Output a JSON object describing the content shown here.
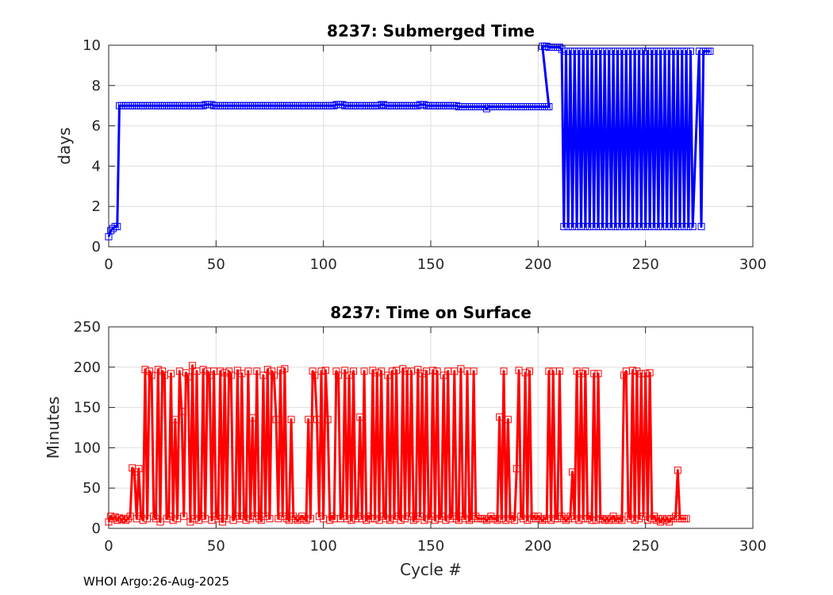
{
  "footer": "WHOI Argo:26-Aug-2025",
  "colors": {
    "submerged": "#0000ff",
    "surface": "#ff0000",
    "grid": "#dedede",
    "axis": "#262626"
  },
  "chart_data": [
    {
      "type": "line",
      "title": "8237: Submerged Time",
      "xlabel": "",
      "ylabel": "days",
      "xlim": [
        0,
        300
      ],
      "ylim": [
        0,
        10
      ],
      "xticks": [
        0,
        50,
        100,
        150,
        200,
        250,
        300
      ],
      "yticks": [
        0,
        2,
        4,
        6,
        8,
        10
      ],
      "grid": true,
      "marker": "square",
      "series": [
        {
          "name": "Submerged Time",
          "color": "#0000ff",
          "segments": [
            {
              "x_start": 0,
              "x_end": 4,
              "values": [
                0.5,
                0.8,
                0.9,
                1.0,
                1.0
              ]
            },
            {
              "x_start": 5,
              "x_end": 201,
              "values": [
                7.0,
                7.0,
                7.0,
                7.0,
                7.0,
                7.0,
                7.0,
                7.0,
                7.0,
                7.0,
                7.0,
                7.0,
                7.0,
                7.0,
                7.0,
                7.0,
                7.0,
                7.0,
                7.0,
                7.0,
                7.0,
                7.0,
                7.0,
                7.0,
                7.0,
                7.0,
                7.0,
                7.0,
                7.0,
                7.0,
                7.0,
                7.0,
                7.0,
                7.0,
                7.0,
                7.0,
                7.0,
                7.0,
                7.0,
                7.0,
                7.05,
                7.05,
                7.05,
                7.05,
                7.0,
                7.0,
                7.0,
                7.0,
                7.0,
                7.0,
                7.0,
                7.0,
                7.0,
                7.0,
                7.0,
                7.0,
                7.0,
                7.0,
                7.0,
                7.0,
                7.0,
                7.0,
                7.0,
                7.0,
                7.0,
                7.0,
                7.0,
                7.0,
                7.0,
                7.0,
                7.0,
                7.0,
                7.0,
                7.0,
                7.0,
                7.0,
                7.0,
                7.0,
                7.0,
                7.0,
                7.0,
                7.0,
                7.0,
                7.0,
                7.0,
                7.0,
                7.0,
                7.0,
                7.0,
                7.0,
                7.0,
                7.0,
                7.0,
                7.0,
                7.0,
                7.0,
                7.0,
                7.0,
                7.0,
                7.0,
                7.0,
                7.05,
                7.05,
                7.05,
                7.05,
                7.0,
                7.0,
                7.0,
                7.0,
                7.0,
                7.0,
                7.0,
                7.0,
                7.0,
                7.0,
                7.0,
                7.0,
                7.0,
                7.0,
                7.0,
                7.0,
                7.0,
                7.05,
                7.05,
                7.0,
                7.0,
                7.0,
                7.0,
                7.0,
                7.0,
                7.0,
                7.0,
                7.0,
                7.0,
                7.0,
                7.0,
                7.0,
                7.0,
                7.0,
                7.0,
                7.05,
                7.05,
                7.05,
                7.0,
                7.0,
                7.0,
                7.0,
                7.0,
                7.0,
                7.0,
                7.0,
                7.0,
                7.0,
                7.0,
                7.0,
                7.0,
                7.0,
                7.0,
                6.95,
                6.95,
                6.95,
                6.95,
                6.95,
                6.95,
                6.95,
                6.95,
                6.95,
                6.95,
                6.95,
                6.95,
                6.95,
                6.85,
                6.95,
                6.95,
                6.95,
                6.95,
                6.95,
                6.95,
                6.95,
                6.95,
                6.95,
                6.95,
                6.95,
                6.95,
                6.95,
                6.95,
                6.95,
                6.95,
                6.95,
                6.95,
                6.95,
                6.95,
                6.95,
                6.95,
                6.95,
                6.95,
                6.95,
                6.95,
                6.95,
                6.95,
                6.95
              ]
            },
            {
              "x_start": 202,
              "x_end": 211,
              "values": [
                9.95,
                9.95,
                9.95,
                9.9,
                9.9,
                9.9,
                9.9,
                9.9,
                9.9,
                9.8
              ]
            },
            {
              "x_start": 212,
              "x_end": 272,
              "alternating": [
                1.0,
                9.7
              ]
            },
            {
              "x_start": 275,
              "x_end": 280,
              "values": [
                9.7,
                1.0,
                9.7,
                9.7,
                9.7,
                9.7
              ]
            }
          ]
        }
      ]
    },
    {
      "type": "line",
      "title": "8237: Time on Surface",
      "xlabel": "Cycle #",
      "ylabel": "Minutes",
      "xlim": [
        0,
        300
      ],
      "ylim": [
        0,
        250
      ],
      "xticks": [
        0,
        50,
        100,
        150,
        200,
        250,
        300
      ],
      "yticks": [
        0,
        50,
        100,
        150,
        200,
        250
      ],
      "grid": true,
      "marker": "square",
      "series": [
        {
          "name": "Time on Surface",
          "color": "#ff0000",
          "x_start": 0,
          "values": [
            8,
            15,
            12,
            14,
            10,
            13,
            11,
            12,
            10,
            12,
            15,
            75,
            70,
            12,
            74,
            15,
            10,
            197,
            12,
            195,
            190,
            15,
            12,
            197,
            8,
            195,
            190,
            12,
            15,
            192,
            10,
            135,
            12,
            195,
            145,
            15,
            193,
            188,
            8,
            202,
            12,
            195,
            10,
            15,
            197,
            12,
            195,
            190,
            10,
            195,
            15,
            12,
            195,
            8,
            193,
            12,
            195,
            190,
            10,
            15,
            196,
            12,
            192,
            15,
            10,
            195,
            12,
            137,
            15,
            195,
            12,
            10,
            190,
            15,
            197,
            12,
            195,
            190,
            135,
            12,
            196,
            15,
            198,
            12,
            10,
            135,
            15,
            12,
            10,
            12,
            15,
            12,
            10,
            135,
            12,
            195,
            190,
            135,
            15,
            195,
            12,
            196,
            135,
            10,
            15,
            12,
            195,
            190,
            12,
            15,
            196,
            12,
            190,
            10,
            195,
            12,
            15,
            138,
            12,
            195,
            10,
            15,
            12,
            196,
            12,
            193,
            10,
            195,
            15,
            12,
            190,
            10,
            195,
            12,
            196,
            15,
            10,
            198,
            12,
            195,
            15,
            195,
            10,
            12,
            197,
            15,
            192,
            10,
            195,
            12,
            15,
            196,
            10,
            195,
            12,
            15,
            190,
            10,
            195,
            12,
            15,
            195,
            12,
            10,
            198,
            15,
            12,
            195,
            10,
            12,
            195,
            15,
            12,
            12,
            12,
            12,
            10,
            12,
            15,
            12,
            12,
            10,
            138,
            12,
            195,
            10,
            135,
            12,
            15,
            10,
            74,
            196,
            15,
            12,
            193,
            10,
            195,
            12,
            15,
            12,
            15,
            12,
            10,
            12,
            12,
            195,
            10,
            195,
            12,
            12,
            195,
            15,
            12,
            10,
            12,
            15,
            70,
            12,
            195,
            10,
            192,
            12,
            195,
            12,
            15,
            10,
            192,
            10,
            192,
            12,
            12,
            10,
            12,
            10,
            12,
            15,
            10,
            12,
            12,
            10,
            190,
            195,
            15,
            12,
            196,
            10,
            195,
            12,
            192,
            15,
            192,
            10,
            193,
            12,
            15,
            10,
            12,
            8,
            12,
            10,
            12,
            8,
            12,
            12,
            15,
            72,
            12,
            12,
            12,
            12
          ]
        }
      ]
    }
  ]
}
